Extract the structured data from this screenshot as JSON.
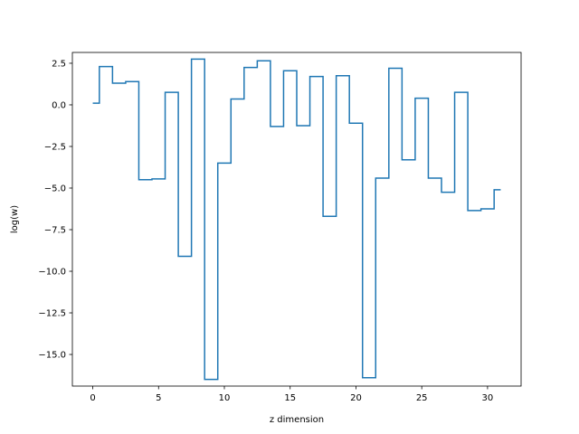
{
  "chart_data": {
    "type": "line",
    "drawstyle": "steps-mid",
    "title": "",
    "xlabel": "z dimension",
    "ylabel": "log(w)",
    "xlim": [
      -1.55,
      32.55
    ],
    "ylim": [
      -16.9,
      3.15
    ],
    "xticks": [
      0,
      5,
      10,
      15,
      20,
      25,
      30
    ],
    "xtick_labels": [
      "0",
      "5",
      "10",
      "15",
      "20",
      "25",
      "30"
    ],
    "yticks": [
      2.5,
      0.0,
      -2.5,
      -5.0,
      -7.5,
      -10.0,
      -12.5,
      -15.0
    ],
    "ytick_labels": [
      "2.5",
      "0.0",
      "−2.5",
      "−5.0",
      "−7.5",
      "−10.0",
      "−12.5",
      "−15.0"
    ],
    "grid": false,
    "legend": "none",
    "series": [
      {
        "color": "#1f77b4",
        "x": [
          0,
          1,
          2,
          3,
          4,
          5,
          6,
          7,
          8,
          9,
          10,
          11,
          12,
          13,
          14,
          15,
          16,
          17,
          18,
          19,
          20,
          21,
          22,
          23,
          24,
          25,
          26,
          27,
          28,
          29,
          30,
          31
        ],
        "y": [
          0.1,
          2.3,
          1.3,
          1.4,
          -4.5,
          -4.45,
          0.75,
          -9.1,
          2.75,
          -16.5,
          -3.5,
          0.35,
          2.25,
          2.65,
          -1.3,
          2.05,
          -1.25,
          1.7,
          -6.7,
          1.75,
          -1.1,
          -16.4,
          -4.4,
          2.2,
          -3.3,
          0.4,
          -4.4,
          -5.25,
          0.75,
          -6.35,
          -6.25,
          -5.1
        ]
      }
    ]
  }
}
